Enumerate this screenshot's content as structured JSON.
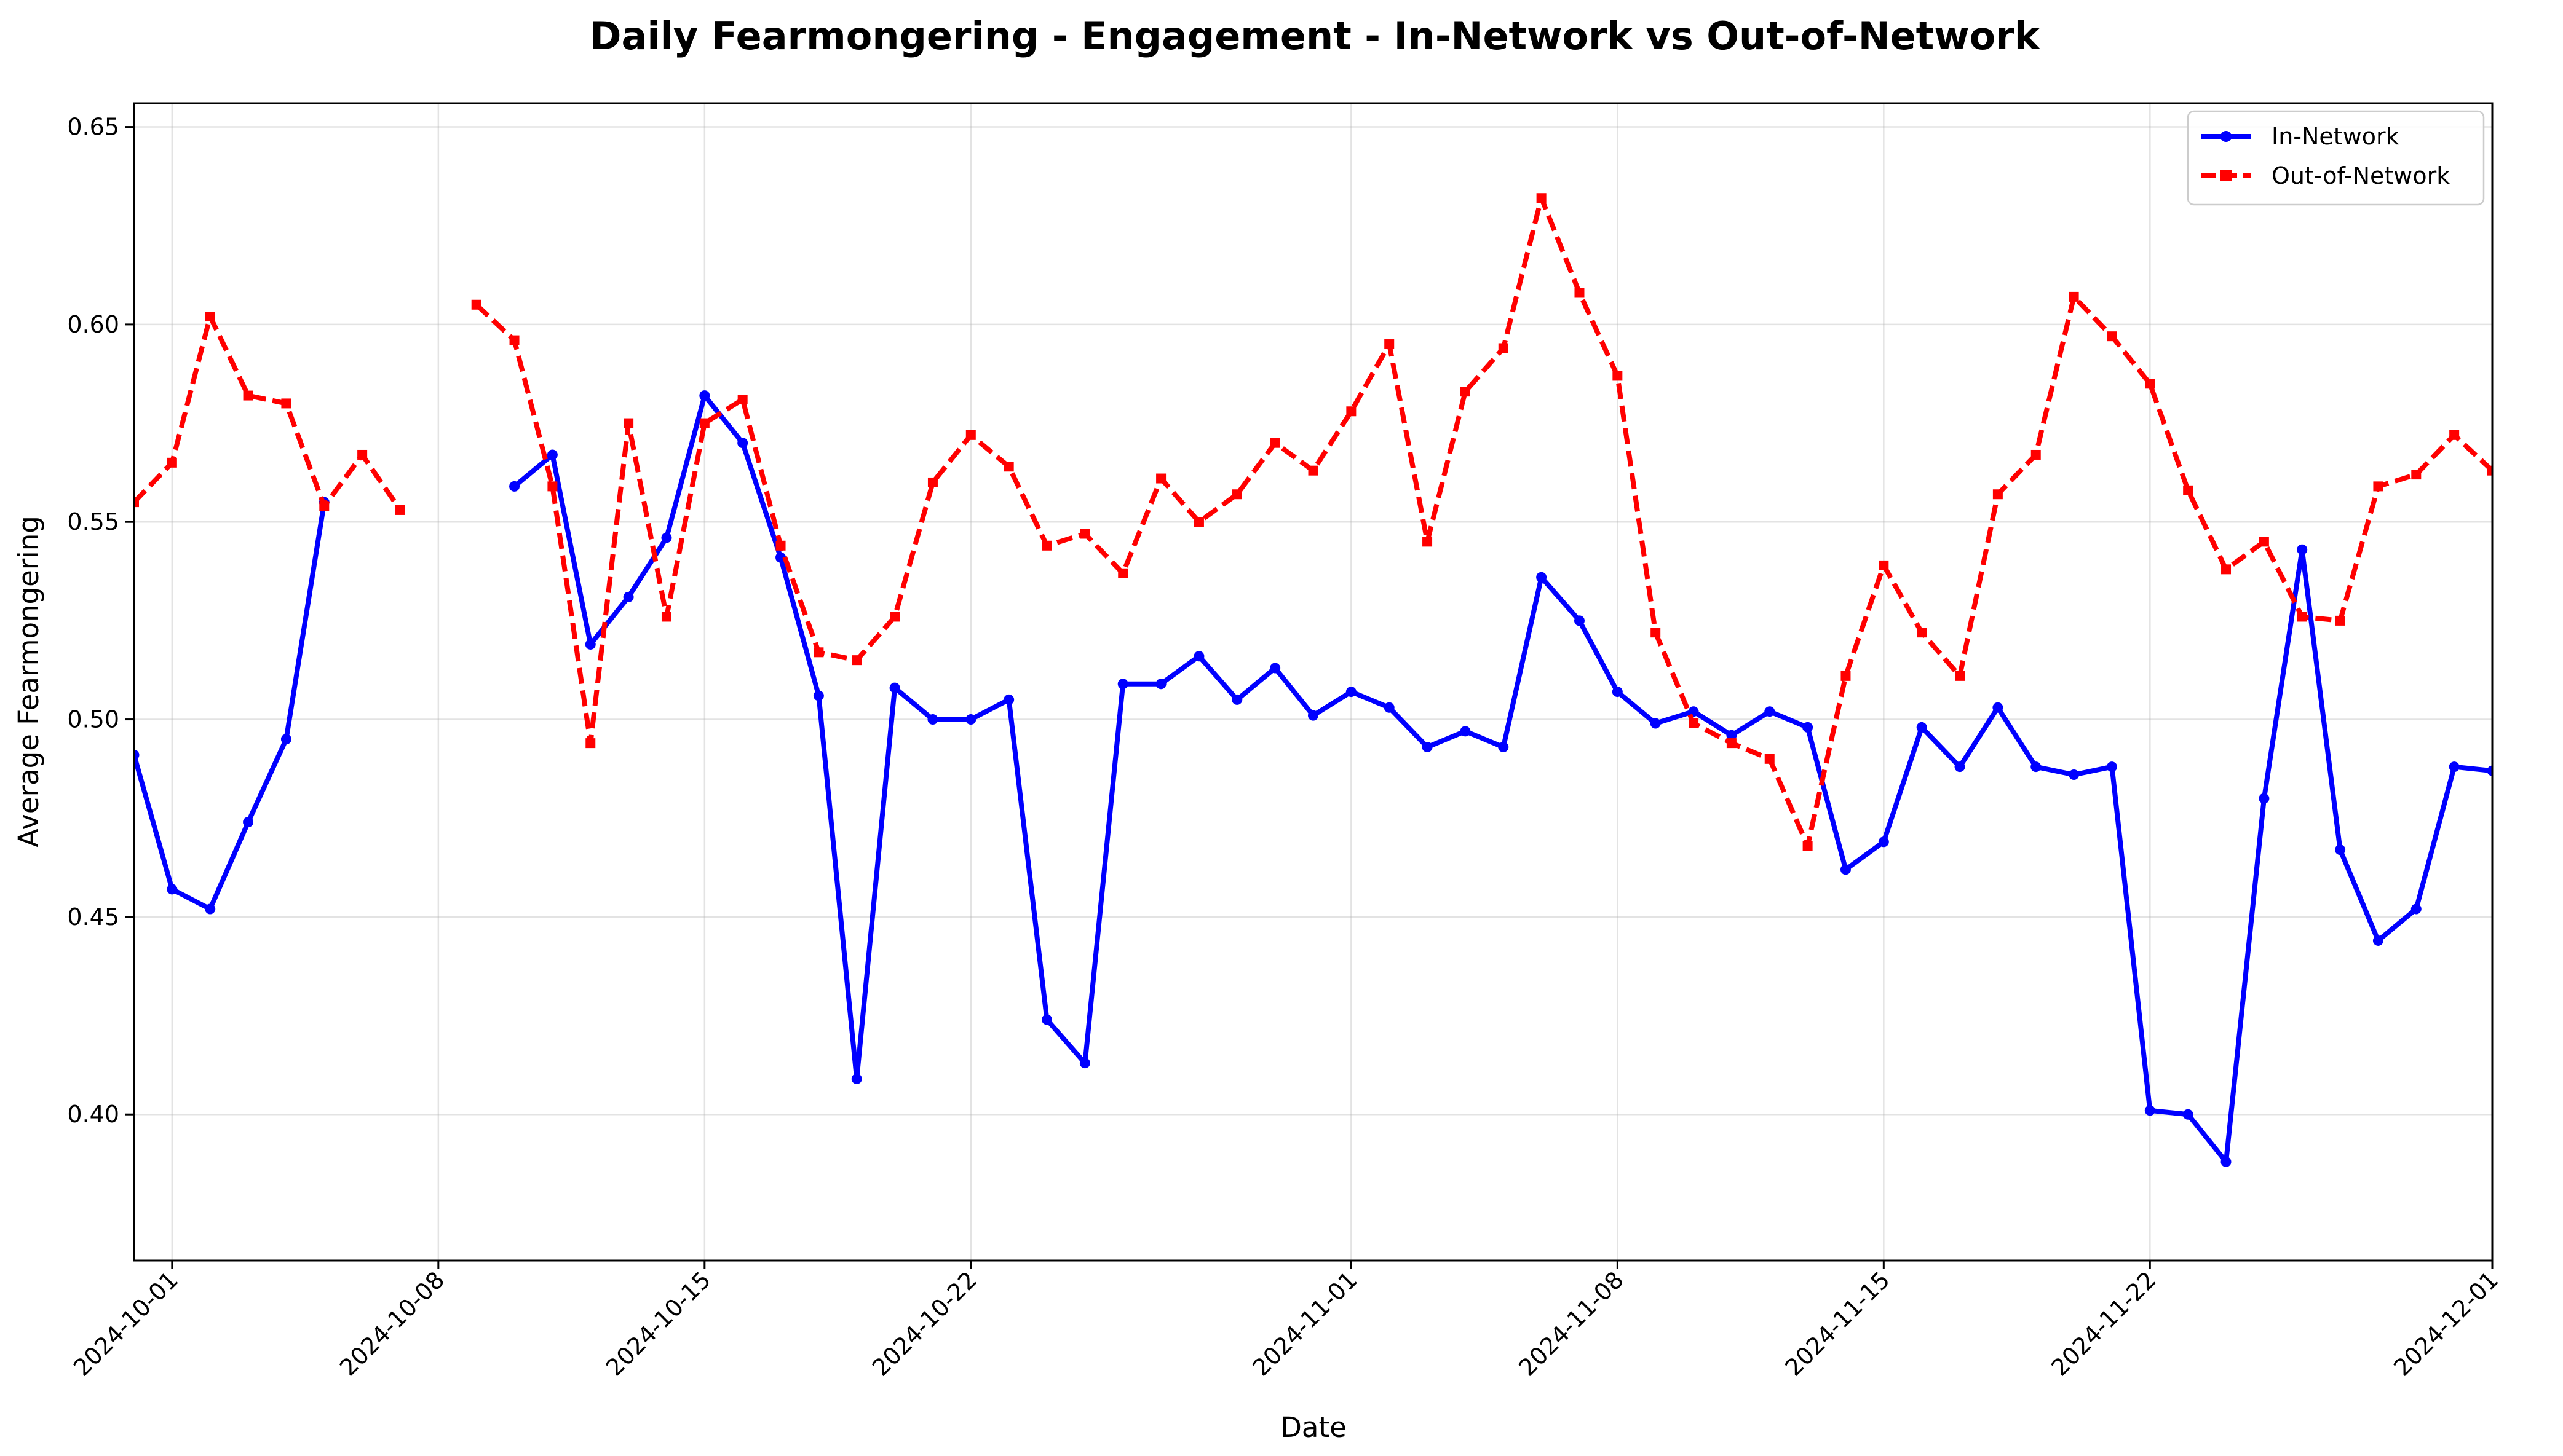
{
  "chart_data": {
    "type": "line",
    "title": "Daily Fearmongering - Engagement - In-Network vs Out-of-Network",
    "xlabel": "Date",
    "ylabel": "Average Fearmongering",
    "xlim": [
      "2024-09-30",
      "2024-12-01"
    ],
    "ylim": [
      0.363,
      0.656
    ],
    "grid": true,
    "legend": "top-right",
    "x_ticks": [
      "2024-10-01",
      "2024-10-08",
      "2024-10-15",
      "2024-10-22",
      "2024-11-01",
      "2024-11-08",
      "2024-11-15",
      "2024-11-22",
      "2024-12-01"
    ],
    "y_ticks": [
      0.4,
      0.45,
      0.5,
      0.55,
      0.6,
      0.65
    ],
    "y_tick_labels": [
      "0.40",
      "0.45",
      "0.50",
      "0.55",
      "0.60",
      "0.65"
    ],
    "series": [
      {
        "name": "In-Network",
        "color": "#0000ff",
        "style": "solid",
        "marker": "circle",
        "points": [
          [
            "2024-09-30",
            0.491
          ],
          [
            "2024-10-01",
            0.457
          ],
          [
            "2024-10-02",
            0.452
          ],
          [
            "2024-10-03",
            0.474
          ],
          [
            "2024-10-04",
            0.495
          ],
          [
            "2024-10-05",
            0.555
          ],
          [
            "2024-10-10",
            0.559
          ],
          [
            "2024-10-11",
            0.567
          ],
          [
            "2024-10-12",
            0.519
          ],
          [
            "2024-10-13",
            0.531
          ],
          [
            "2024-10-14",
            0.546
          ],
          [
            "2024-10-15",
            0.582
          ],
          [
            "2024-10-16",
            0.57
          ],
          [
            "2024-10-17",
            0.541
          ],
          [
            "2024-10-18",
            0.506
          ],
          [
            "2024-10-19",
            0.409
          ],
          [
            "2024-10-20",
            0.508
          ],
          [
            "2024-10-21",
            0.5
          ],
          [
            "2024-10-22",
            0.5
          ],
          [
            "2024-10-23",
            0.505
          ],
          [
            "2024-10-24",
            0.424
          ],
          [
            "2024-10-25",
            0.413
          ],
          [
            "2024-10-26",
            0.509
          ],
          [
            "2024-10-27",
            0.509
          ],
          [
            "2024-10-28",
            0.516
          ],
          [
            "2024-10-29",
            0.505
          ],
          [
            "2024-10-30",
            0.513
          ],
          [
            "2024-10-31",
            0.501
          ],
          [
            "2024-11-01",
            0.507
          ],
          [
            "2024-11-02",
            0.503
          ],
          [
            "2024-11-03",
            0.493
          ],
          [
            "2024-11-04",
            0.497
          ],
          [
            "2024-11-05",
            0.493
          ],
          [
            "2024-11-06",
            0.536
          ],
          [
            "2024-11-07",
            0.525
          ],
          [
            "2024-11-08",
            0.507
          ],
          [
            "2024-11-09",
            0.499
          ],
          [
            "2024-11-10",
            0.502
          ],
          [
            "2024-11-11",
            0.496
          ],
          [
            "2024-11-12",
            0.502
          ],
          [
            "2024-11-13",
            0.498
          ],
          [
            "2024-11-14",
            0.462
          ],
          [
            "2024-11-15",
            0.469
          ],
          [
            "2024-11-16",
            0.498
          ],
          [
            "2024-11-17",
            0.488
          ],
          [
            "2024-11-18",
            0.503
          ],
          [
            "2024-11-19",
            0.488
          ],
          [
            "2024-11-20",
            0.486
          ],
          [
            "2024-11-21",
            0.488
          ],
          [
            "2024-11-22",
            0.401
          ],
          [
            "2024-11-23",
            0.4
          ],
          [
            "2024-11-24",
            0.388
          ],
          [
            "2024-11-25",
            0.48
          ],
          [
            "2024-11-26",
            0.543
          ],
          [
            "2024-11-27",
            0.467
          ],
          [
            "2024-11-28",
            0.444
          ],
          [
            "2024-11-29",
            0.452
          ],
          [
            "2024-11-30",
            0.488
          ],
          [
            "2024-12-01",
            0.487
          ]
        ]
      },
      {
        "name": "Out-of-Network",
        "color": "#ff0000",
        "style": "dashed",
        "marker": "square",
        "points": [
          [
            "2024-09-30",
            0.555
          ],
          [
            "2024-10-01",
            0.565
          ],
          [
            "2024-10-02",
            0.602
          ],
          [
            "2024-10-03",
            0.582
          ],
          [
            "2024-10-04",
            0.58
          ],
          [
            "2024-10-05",
            0.554
          ],
          [
            "2024-10-06",
            0.567
          ],
          [
            "2024-10-07",
            0.553
          ],
          [
            "2024-10-09",
            0.605
          ],
          [
            "2024-10-10",
            0.596
          ],
          [
            "2024-10-11",
            0.559
          ],
          [
            "2024-10-12",
            0.494
          ],
          [
            "2024-10-13",
            0.575
          ],
          [
            "2024-10-14",
            0.526
          ],
          [
            "2024-10-15",
            0.575
          ],
          [
            "2024-10-16",
            0.581
          ],
          [
            "2024-10-17",
            0.544
          ],
          [
            "2024-10-18",
            0.517
          ],
          [
            "2024-10-19",
            0.515
          ],
          [
            "2024-10-20",
            0.526
          ],
          [
            "2024-10-21",
            0.56
          ],
          [
            "2024-10-22",
            0.572
          ],
          [
            "2024-10-23",
            0.564
          ],
          [
            "2024-10-24",
            0.544
          ],
          [
            "2024-10-25",
            0.547
          ],
          [
            "2024-10-26",
            0.537
          ],
          [
            "2024-10-27",
            0.561
          ],
          [
            "2024-10-28",
            0.55
          ],
          [
            "2024-10-29",
            0.557
          ],
          [
            "2024-10-30",
            0.57
          ],
          [
            "2024-10-31",
            0.563
          ],
          [
            "2024-11-01",
            0.578
          ],
          [
            "2024-11-02",
            0.595
          ],
          [
            "2024-11-03",
            0.545
          ],
          [
            "2024-11-04",
            0.583
          ],
          [
            "2024-11-05",
            0.594
          ],
          [
            "2024-11-06",
            0.632
          ],
          [
            "2024-11-07",
            0.608
          ],
          [
            "2024-11-08",
            0.587
          ],
          [
            "2024-11-09",
            0.522
          ],
          [
            "2024-11-10",
            0.499
          ],
          [
            "2024-11-11",
            0.494
          ],
          [
            "2024-11-12",
            0.49
          ],
          [
            "2024-11-13",
            0.468
          ],
          [
            "2024-11-14",
            0.511
          ],
          [
            "2024-11-15",
            0.539
          ],
          [
            "2024-11-16",
            0.522
          ],
          [
            "2024-11-17",
            0.511
          ],
          [
            "2024-11-18",
            0.557
          ],
          [
            "2024-11-19",
            0.567
          ],
          [
            "2024-11-20",
            0.607
          ],
          [
            "2024-11-21",
            0.597
          ],
          [
            "2024-11-22",
            0.585
          ],
          [
            "2024-11-23",
            0.558
          ],
          [
            "2024-11-24",
            0.538
          ],
          [
            "2024-11-25",
            0.545
          ],
          [
            "2024-11-26",
            0.526
          ],
          [
            "2024-11-27",
            0.525
          ],
          [
            "2024-11-28",
            0.559
          ],
          [
            "2024-11-29",
            0.562
          ],
          [
            "2024-11-30",
            0.572
          ],
          [
            "2024-12-01",
            0.563
          ]
        ]
      }
    ]
  }
}
